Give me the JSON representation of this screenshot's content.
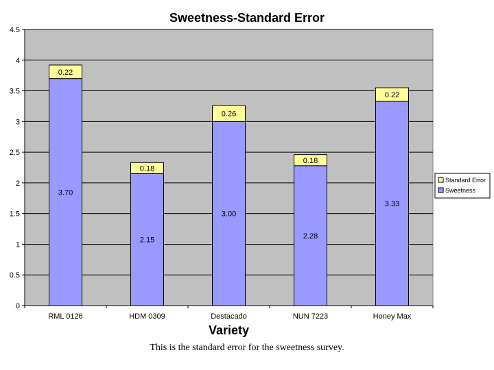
{
  "caption": "This is the standard error for the sweetness survey.",
  "chart_data": {
    "type": "bar",
    "stacked": true,
    "title": "Sweetness-Standard Error",
    "xlabel": "Variety",
    "ylabel": "",
    "ylim": [
      0,
      4.5
    ],
    "ytick_step": 0.5,
    "grid": true,
    "legend_position": "right",
    "categories": [
      "RML 0126",
      "HDM 0309",
      "Destacado",
      "NUN 7223",
      "Honey Max"
    ],
    "series": [
      {
        "name": "Sweetness",
        "values": [
          3.7,
          2.15,
          3.0,
          2.28,
          3.33
        ],
        "labels": [
          "3.70",
          "2.15",
          "3.00",
          "2.28",
          "3.33"
        ],
        "color": "#9999ff"
      },
      {
        "name": "Standard Error",
        "values": [
          0.22,
          0.18,
          0.26,
          0.18,
          0.22
        ],
        "labels": [
          "0.22",
          "0.18",
          "0.26",
          "0.18",
          "0.22"
        ],
        "color": "#ffff99"
      }
    ],
    "colors": {
      "plot_background": "#c0c0c0",
      "gridline": "#000000"
    }
  }
}
